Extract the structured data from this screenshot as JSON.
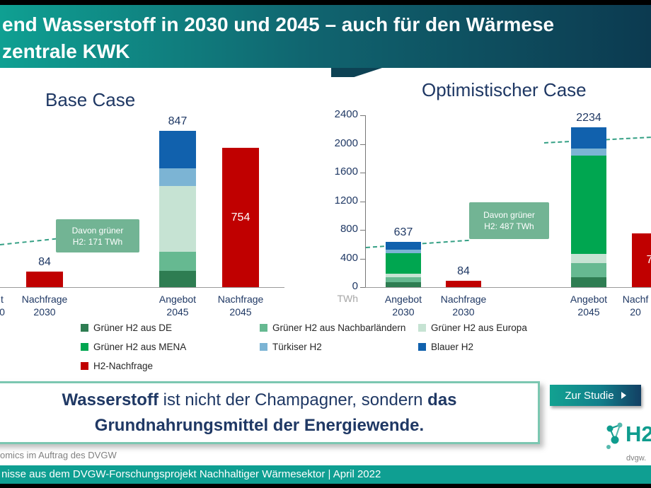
{
  "colors": {
    "de": "#2e7d52",
    "nachbar": "#66b991",
    "europa": "#c6e3d3",
    "mena": "#00a650",
    "tuerkis": "#7cb4d4",
    "blau": "#1161ad",
    "nachfrage": "#c00000",
    "callout_green": "#72b494",
    "dash_teal": "#35a085",
    "header_teal": "#0fa092",
    "header_dark": "#0c3a50",
    "navy_text": "#1f3864",
    "bottom_bar_teal": "#0f9f92"
  },
  "header": {
    "title_line1": "end Wasserstoff in 2030 und 2045 – auch für den Wärmese",
    "title_line2": "zentrale KWK"
  },
  "chart_data": [
    {
      "type": "bar",
      "title": "Base Case",
      "unit": "TWh",
      "callout": {
        "line1": "Davon grüner",
        "line2": "H2: 171 TWh"
      },
      "bars": [
        {
          "name": "angebot-2030-partial",
          "cat1": "t",
          "cat2": "0",
          "partial": true,
          "segments": []
        },
        {
          "name": "nachfrage-2030",
          "cat1": "Nachfrage",
          "cat2": "2030",
          "value_label": "84",
          "segments": [
            {
              "color": "nachfrage",
              "value": 84
            }
          ]
        },
        {
          "name": "angebot-2045",
          "cat1": "Angebot",
          "cat2": "2045",
          "value_label": "847",
          "segments": [
            {
              "color": "de",
              "value": 88
            },
            {
              "color": "nachbar",
              "value": 104
            },
            {
              "color": "europa",
              "value": 357
            },
            {
              "color": "tuerkis",
              "value": 96
            },
            {
              "color": "blau",
              "value": 202
            }
          ]
        },
        {
          "name": "nachfrage-2045",
          "cat1": "Nachfrage",
          "cat2": "2045",
          "value_label": "754",
          "label_inside": true,
          "segments": [
            {
              "color": "nachfrage",
              "value": 754
            }
          ]
        }
      ]
    },
    {
      "type": "bar",
      "title": "Optimistischer Case",
      "axis": {
        "ticks": [
          2400,
          2000,
          1600,
          1200,
          800,
          400,
          0
        ],
        "unit": "TWh",
        "ylim": [
          0,
          2400
        ]
      },
      "callout": {
        "line1": "Davon grüner",
        "line2": "H2: 487 TWh"
      },
      "bars": [
        {
          "name": "angebot-2030",
          "cat1": "Angebot",
          "cat2": "2030",
          "value_label": "637",
          "segments": [
            {
              "color": "de",
              "value": 70
            },
            {
              "color": "nachbar",
              "value": 70
            },
            {
              "color": "europa",
              "value": 50
            },
            {
              "color": "mena",
              "value": 280
            },
            {
              "color": "tuerkis",
              "value": 55
            },
            {
              "color": "blau",
              "value": 112
            }
          ]
        },
        {
          "name": "nachfrage-2030",
          "cat1": "Nachfrage",
          "cat2": "2030",
          "value_label": "84",
          "segments": [
            {
              "color": "nachfrage",
              "value": 84
            }
          ]
        },
        {
          "name": "angebot-2045",
          "cat1": "Angebot",
          "cat2": "2045",
          "value_label": "2234",
          "segments": [
            {
              "color": "de",
              "value": 140
            },
            {
              "color": "nachbar",
              "value": 200
            },
            {
              "color": "europa",
              "value": 120
            },
            {
              "color": "mena",
              "value": 1380
            },
            {
              "color": "tuerkis",
              "value": 100
            },
            {
              "color": "blau",
              "value": 294
            }
          ]
        },
        {
          "name": "nachfrage-2045-partial",
          "cat1": "Nachf",
          "cat2": "20",
          "partial": true,
          "value_label": "7",
          "label_inside": true,
          "segments": [
            {
              "color": "nachfrage",
              "value": 750
            }
          ]
        }
      ]
    }
  ],
  "legend": {
    "items": [
      {
        "key": "de",
        "label": "Grüner H2 aus DE"
      },
      {
        "key": "nachbar",
        "label": "Grüner H2 aus Nachbarländern"
      },
      {
        "key": "europa",
        "label": "Grüner H2 aus Europa"
      },
      {
        "key": "mena",
        "label": "Grüner H2 aus MENA"
      },
      {
        "key": "tuerkis",
        "label": "Türkiser H2"
      },
      {
        "key": "blau",
        "label": "Blauer H2"
      },
      {
        "key": "nachfrage",
        "label": "H2-Nachfrage"
      }
    ]
  },
  "quote": {
    "bold1": "Wasserstoff",
    "normal1": " ist nicht der Champagner, sondern ",
    "bold2": "das",
    "bold3": "Grundnahrungsmittel der Energiewende."
  },
  "cta": {
    "label": "Zur Studie"
  },
  "footer": {
    "credit": "omics im Auftrag des DVGW",
    "bar_text": "nisse aus dem DVGW-Forschungsprojekt Nachhaltiger Wärmesektor | April 2022"
  },
  "logo": {
    "text": "H2",
    "sub": "dvgw."
  }
}
